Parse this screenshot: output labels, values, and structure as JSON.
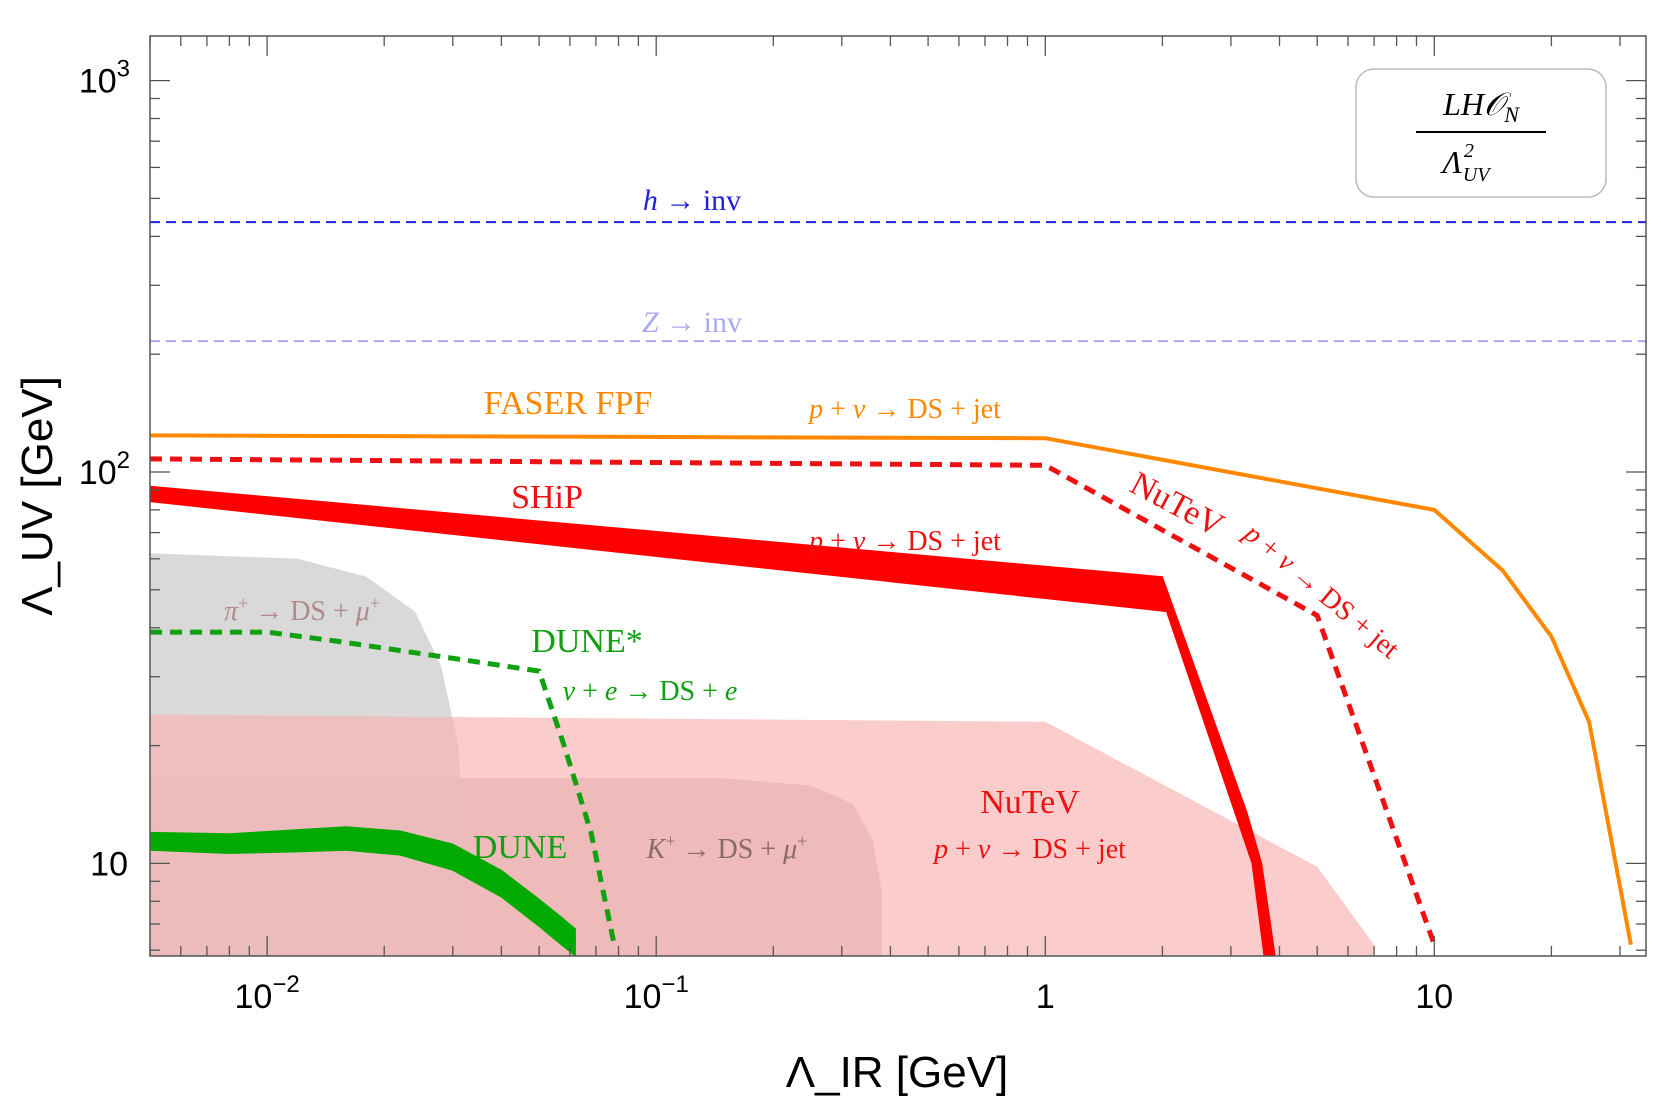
{
  "chart_data": {
    "type": "area",
    "title": "",
    "xlabel": "Λ_IR [GeV]",
    "ylabel": "Λ_UV [GeV]",
    "xscale": "log",
    "yscale": "log",
    "xlim": [
      0.005,
      35
    ],
    "ylim": [
      5.8,
      1300
    ],
    "x_ticks": [
      {
        "value": 0.01,
        "base": "10",
        "exp": "−2"
      },
      {
        "value": 0.1,
        "base": "10",
        "exp": "−1"
      },
      {
        "value": 1,
        "base": "1",
        "exp": ""
      },
      {
        "value": 10,
        "base": "10",
        "exp": ""
      }
    ],
    "y_ticks": [
      {
        "value": 10,
        "base": "10",
        "exp": ""
      },
      {
        "value": 100,
        "base": "10",
        "exp": "2"
      },
      {
        "value": 1000,
        "base": "10",
        "exp": "3"
      }
    ],
    "legend": {
      "position": "top-right",
      "numerator": "LH𝒪",
      "numerator_sub": "N",
      "denominator": "Λ",
      "denominator_sup": "2",
      "denominator_sub": "UV"
    },
    "series": [
      {
        "name": "Kaon decay region",
        "style": "filled",
        "color": "#b9a3a3",
        "opacity": 0.55,
        "x": [
          0.005,
          0.15,
          0.25,
          0.32,
          0.36,
          0.38,
          0.38,
          0.005
        ],
        "y": [
          16.5,
          16.5,
          15.8,
          14.2,
          11.5,
          8.5,
          5.8,
          5.8
        ]
      },
      {
        "name": "Pion decay region",
        "style": "filled",
        "color": "#d2d2d2",
        "opacity": 0.85,
        "x": [
          0.005,
          0.012,
          0.018,
          0.024,
          0.028,
          0.031,
          0.032,
          0.032,
          0.005
        ],
        "y": [
          62,
          60,
          54,
          44,
          32,
          20,
          12,
          5.8,
          5.8
        ]
      },
      {
        "name": "NuTeV p+ν→DS+jet region",
        "style": "filled",
        "color": "#f9b0b0",
        "opacity": 0.65,
        "x": [
          0.005,
          1,
          5,
          7,
          7,
          0.005
        ],
        "y": [
          24,
          23,
          9.8,
          6.2,
          5.8,
          5.8
        ]
      },
      {
        "name": "DUNE",
        "style": "band",
        "color": "#00aa00",
        "x": [
          0.005,
          0.008,
          0.012,
          0.016,
          0.022,
          0.03,
          0.04,
          0.05,
          0.057,
          0.062
        ],
        "y_low": [
          10.8,
          10.6,
          10.7,
          10.8,
          10.5,
          9.6,
          8.2,
          6.9,
          6.2,
          5.8
        ],
        "y_high": [
          12,
          11.9,
          12.2,
          12.4,
          12.1,
          11.2,
          9.6,
          8.1,
          7.3,
          6.8
        ]
      },
      {
        "name": "SHiP",
        "style": "band",
        "color": "#ff0000",
        "x": [
          0.005,
          2,
          3.3,
          3.6,
          3.9,
          3.65,
          3.4,
          2.05,
          0.005
        ],
        "y": [
          92,
          54,
          13.5,
          10,
          5.8,
          5.8,
          10,
          44,
          84
        ]
      },
      {
        "name": "FASER FPF",
        "style": "solid",
        "color": "#ff8800",
        "x": [
          0.005,
          1,
          10,
          15,
          20,
          25,
          32
        ],
        "y": [
          124,
          122,
          80,
          56,
          38,
          23,
          6.2
        ]
      },
      {
        "name": "NuTeV",
        "style": "dashed",
        "color": "#ee1111",
        "x": [
          0.005,
          1,
          5,
          10
        ],
        "y": [
          108,
          104,
          43,
          6.2
        ]
      },
      {
        "name": "DUNE*",
        "style": "dashed",
        "color": "#10a010",
        "x": [
          0.005,
          0.01,
          0.015,
          0.05,
          0.058,
          0.068,
          0.078
        ],
        "y": [
          39,
          39,
          37,
          31,
          20,
          12,
          6.2
        ]
      },
      {
        "name": "h → inv",
        "style": "hline",
        "color": "#2222dd",
        "y": 435
      },
      {
        "name": "Z → inv",
        "style": "hline",
        "color": "#aaaaee",
        "y": 216
      }
    ],
    "annotations": [
      {
        "id": "h-inv",
        "parts": [
          {
            "t": "h",
            "i": true
          },
          {
            "t": " → inv"
          }
        ],
        "color": "#2222dd"
      },
      {
        "id": "z-inv",
        "parts": [
          {
            "t": "Z",
            "i": true
          },
          {
            "t": " → inv"
          }
        ],
        "color": "#aaaaee"
      },
      {
        "id": "faser",
        "parts": [
          {
            "t": "FASER FPF"
          }
        ],
        "color": "#ff8800"
      },
      {
        "id": "faser-proc",
        "parts": [
          {
            "t": "p",
            "i": true
          },
          {
            "t": " + "
          },
          {
            "t": "ν",
            "i": true
          },
          {
            "t": " → DS + jet"
          }
        ],
        "color": "#ff8800"
      },
      {
        "id": "ship",
        "parts": [
          {
            "t": "SHiP"
          }
        ],
        "color": "#ee1111"
      },
      {
        "id": "ship-proc",
        "parts": [
          {
            "t": "p",
            "i": true
          },
          {
            "t": " + "
          },
          {
            "t": "ν",
            "i": true
          },
          {
            "t": " → DS + jet"
          }
        ],
        "color": "#ee1111"
      },
      {
        "id": "nutev-dashed",
        "parts": [
          {
            "t": "NuTeV"
          }
        ],
        "color": "#ee1111"
      },
      {
        "id": "nutev-dashed-proc",
        "parts": [
          {
            "t": "p",
            "i": true
          },
          {
            "t": " + "
          },
          {
            "t": "ν",
            "i": true
          },
          {
            "t": " → DS + jet"
          }
        ],
        "color": "#ee1111"
      },
      {
        "id": "pion",
        "parts": [
          {
            "t": "π",
            "i": true
          },
          {
            "t": "+",
            "sup": true
          },
          {
            "t": " → DS + "
          },
          {
            "t": "μ",
            "i": true
          },
          {
            "t": "+",
            "sup": true
          }
        ],
        "color": "#b08a8a"
      },
      {
        "id": "dune-star",
        "parts": [
          {
            "t": "DUNE*"
          }
        ],
        "color": "#10a010"
      },
      {
        "id": "dune-star-proc",
        "parts": [
          {
            "t": "ν",
            "i": true
          },
          {
            "t": " + "
          },
          {
            "t": "e",
            "i": true
          },
          {
            "t": " → DS + "
          },
          {
            "t": "e",
            "i": true
          }
        ],
        "color": "#10a010"
      },
      {
        "id": "dune",
        "parts": [
          {
            "t": "DUNE"
          }
        ],
        "color": "#10a010"
      },
      {
        "id": "kaon",
        "parts": [
          {
            "t": "K",
            "i": true
          },
          {
            "t": "+",
            "sup": true
          },
          {
            "t": " → DS + "
          },
          {
            "t": "μ",
            "i": true
          },
          {
            "t": "+",
            "sup": true
          }
        ],
        "color": "#8a6a6a"
      },
      {
        "id": "nutev-region",
        "parts": [
          {
            "t": "NuTeV"
          }
        ],
        "color": "#ee1111"
      },
      {
        "id": "nutev-region-proc",
        "parts": [
          {
            "t": "p",
            "i": true
          },
          {
            "t": " + "
          },
          {
            "t": "ν",
            "i": true
          },
          {
            "t": " → DS + jet"
          }
        ],
        "color": "#ee1111"
      }
    ]
  }
}
